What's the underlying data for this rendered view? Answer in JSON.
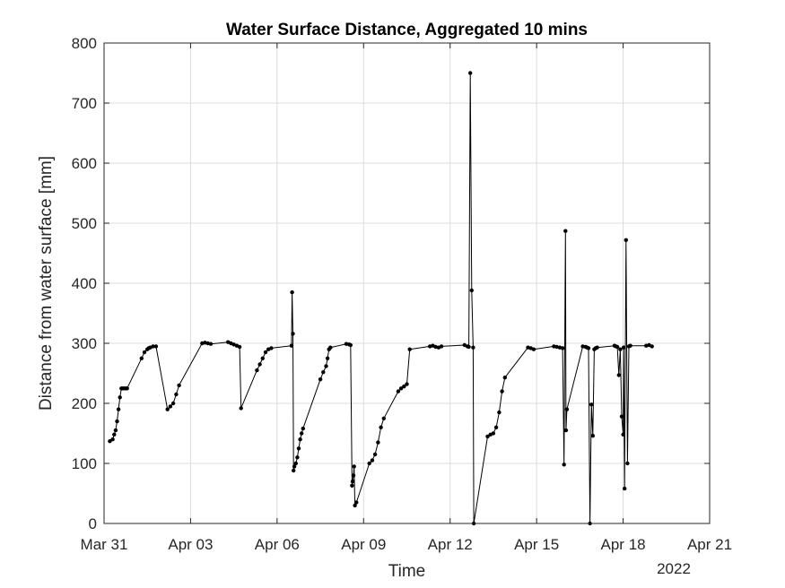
{
  "chart_data": {
    "type": "line",
    "title": "Water Surface Distance, Aggregated 10 mins",
    "xlabel": "Time",
    "ylabel": "Distance from water surface [mm]",
    "x_secondary_label": "2022",
    "x_ticks": [
      "Mar 31",
      "Apr 03",
      "Apr 06",
      "Apr 09",
      "Apr 12",
      "Apr 15",
      "Apr 18",
      "Apr 21"
    ],
    "y_ticks": [
      "0",
      "100",
      "200",
      "300",
      "400",
      "500",
      "600",
      "700",
      "800"
    ],
    "xlim": [
      0,
      21
    ],
    "ylim": [
      0,
      800
    ],
    "grid": true,
    "series_color": "#000000",
    "series": [
      {
        "x": [
          0.2,
          0.3,
          0.35,
          0.4,
          0.45,
          0.5,
          0.55,
          0.6,
          0.65,
          0.7,
          0.75,
          0.8,
          1.3,
          1.4,
          1.5,
          1.55,
          1.6,
          1.7,
          1.8,
          2.2,
          2.3,
          2.4,
          2.5,
          2.6,
          3.4,
          3.5,
          3.6,
          3.7,
          4.3,
          4.4,
          4.5,
          4.6,
          4.7,
          4.75,
          5.3,
          5.4,
          5.5,
          5.6,
          5.7,
          5.8,
          6.5,
          6.52,
          6.55,
          6.57,
          6.6,
          6.65,
          6.7,
          6.75,
          6.8,
          6.85,
          6.9,
          7.5,
          7.6,
          7.7,
          7.75,
          7.8,
          7.85,
          8.4,
          8.5,
          8.55,
          8.6,
          8.62,
          8.65,
          8.67,
          8.7,
          8.75,
          9.2,
          9.3,
          9.4,
          9.5,
          9.6,
          9.7,
          10.2,
          10.3,
          10.4,
          10.5,
          10.6,
          11.3,
          11.4,
          11.5,
          11.6,
          11.7,
          12.5,
          12.6,
          12.65,
          12.7,
          12.75,
          12.8,
          12.82,
          13.3,
          13.4,
          13.5,
          13.6,
          13.7,
          13.8,
          13.9,
          14.7,
          14.8,
          14.9,
          15.6,
          15.7,
          15.8,
          15.9,
          15.95,
          16.0,
          16.02,
          16.05,
          16.6,
          16.7,
          16.75,
          16.8,
          16.85,
          16.9,
          16.95,
          17.0,
          17.05,
          17.1,
          17.7,
          17.75,
          17.8,
          17.85,
          17.9,
          17.95,
          18.0,
          18.02,
          18.05,
          18.1,
          18.15,
          18.2,
          18.25,
          18.8,
          18.9,
          19.0
        ],
        "y": [
          137,
          140,
          148,
          155,
          170,
          190,
          210,
          225,
          225,
          225,
          225,
          225,
          275,
          285,
          290,
          292,
          293,
          295,
          295,
          190,
          195,
          200,
          215,
          230,
          300,
          301,
          300,
          299,
          302,
          300,
          298,
          296,
          294,
          192,
          255,
          265,
          275,
          285,
          290,
          292,
          296,
          385,
          316,
          88,
          95,
          100,
          110,
          125,
          140,
          150,
          158,
          240,
          252,
          262,
          275,
          290,
          293,
          299,
          298,
          297,
          63,
          70,
          80,
          95,
          30,
          35,
          100,
          105,
          115,
          135,
          160,
          175,
          220,
          225,
          228,
          232,
          290,
          295,
          296,
          294,
          293,
          295,
          297,
          295,
          294,
          750,
          388,
          293,
          0,
          145,
          148,
          150,
          160,
          185,
          220,
          243,
          293,
          292,
          290,
          295,
          294,
          293,
          292,
          98,
          487,
          155,
          190,
          295,
          294,
          293,
          292,
          0,
          198,
          146,
          290,
          292,
          293,
          296,
          295,
          294,
          247,
          290,
          178,
          148,
          293,
          58,
          472,
          100,
          295,
          296,
          296,
          297,
          295
        ]
      }
    ]
  }
}
